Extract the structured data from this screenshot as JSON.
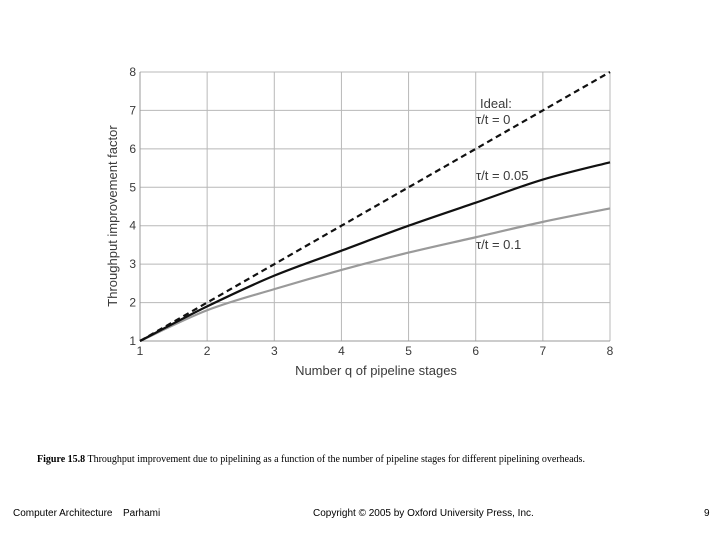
{
  "chart_data": {
    "type": "line",
    "xlabel": "Number q of pipeline stages",
    "ylabel": "Throughput improvement factor",
    "xlim": [
      1,
      8
    ],
    "ylim": [
      1,
      8
    ],
    "x_ticks": [
      "1",
      "2",
      "3",
      "4",
      "5",
      "6",
      "7",
      "8"
    ],
    "y_ticks": [
      "1",
      "2",
      "3",
      "4",
      "5",
      "6",
      "7",
      "8"
    ],
    "grid": true,
    "x": [
      1,
      2,
      3,
      4,
      5,
      6,
      7,
      8
    ],
    "series": [
      {
        "name": "Ideal: τ/t = 0",
        "style": "dashed",
        "color": "#111111",
        "values": [
          1,
          2,
          3,
          4,
          5,
          6,
          7,
          8
        ]
      },
      {
        "name": "τ/t = 0.05",
        "style": "solid",
        "color": "#111111",
        "values": [
          1,
          1.9,
          2.7,
          3.35,
          4.0,
          4.6,
          5.2,
          5.65
        ]
      },
      {
        "name": "τ/t = 0.1",
        "style": "solid",
        "color": "#9a9a9a",
        "values": [
          1,
          1.8,
          2.35,
          2.85,
          3.3,
          3.7,
          4.1,
          4.45
        ]
      }
    ],
    "annotations": {
      "ideal_line1": "Ideal:",
      "ideal_line2": "τ/t = 0",
      "s005": "τ/t = 0.05",
      "s01": "τ/t = 0.1"
    }
  },
  "caption": {
    "figure_label": "Figure 15.8",
    "text": "Throughput improvement due to pipelining as a function of the number of pipeline stages for different pipelining overheads."
  },
  "footer": {
    "course": "Computer Architecture",
    "author": "Parhami",
    "copyright": "Copyright © 2005 by Oxford University Press, Inc.",
    "page": "9"
  }
}
